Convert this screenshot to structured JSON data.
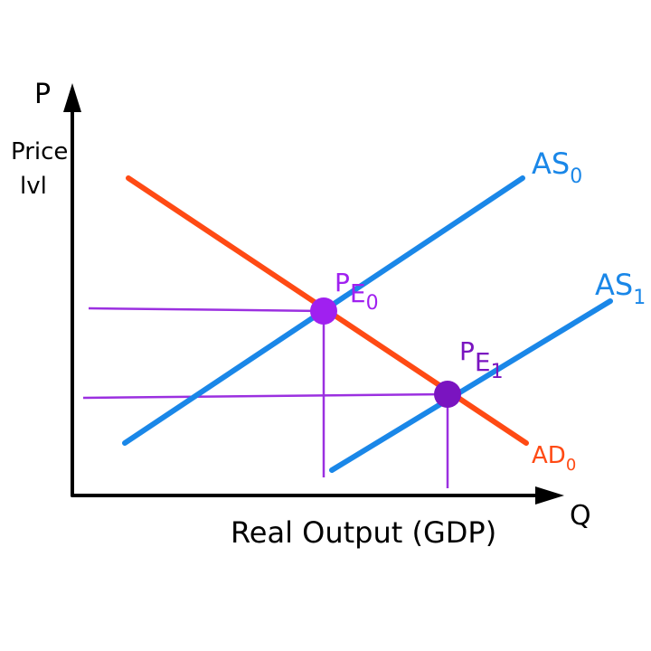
{
  "axes": {
    "y": {
      "symbol": "P",
      "label_line_1": "Price",
      "label_line_2": "lvl"
    },
    "x": {
      "symbol": "Q",
      "label": "Real Output (GDP)"
    }
  },
  "curves": [
    {
      "label": "AS",
      "subscript": "0"
    },
    {
      "label": "AS",
      "subscript": "1"
    },
    {
      "label": "AD",
      "subscript": "0"
    }
  ],
  "points": [
    {
      "label": "P",
      "subscript": "E",
      "index": "0"
    },
    {
      "label": "P",
      "subscript": "E",
      "index": "1"
    }
  ]
}
